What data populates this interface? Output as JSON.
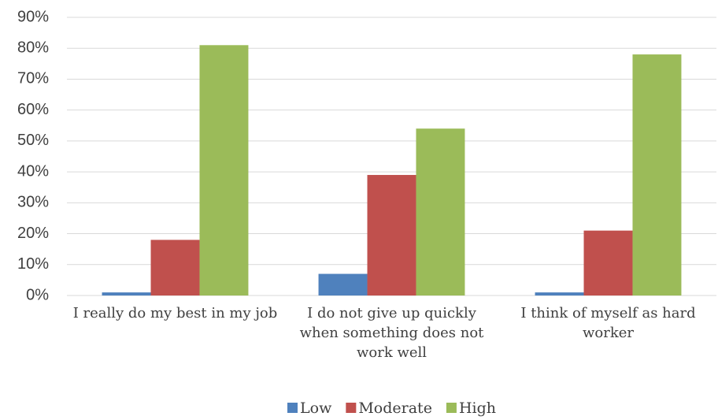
{
  "chart_data": {
    "type": "bar",
    "categories": [
      "I really do my best in my job",
      "I do not give up quickly when something does not work well",
      "I think of myself as hard worker"
    ],
    "series": [
      {
        "name": "Low",
        "color": "#4f81bd",
        "values": [
          1,
          7,
          1
        ]
      },
      {
        "name": "Moderate",
        "color": "#c0504d",
        "values": [
          18,
          39,
          21
        ]
      },
      {
        "name": "High",
        "color": "#9bbb59",
        "values": [
          81,
          54,
          78
        ]
      }
    ],
    "ylim": [
      0,
      90
    ],
    "yticks": [
      {
        "value": 0,
        "label": "0%"
      },
      {
        "value": 10,
        "label": "10%"
      },
      {
        "value": 20,
        "label": "20%"
      },
      {
        "value": 30,
        "label": "30%"
      },
      {
        "value": 40,
        "label": "40%"
      },
      {
        "value": 50,
        "label": "50%"
      },
      {
        "value": 60,
        "label": "60%"
      },
      {
        "value": 70,
        "label": "70%"
      },
      {
        "value": 80,
        "label": "80%"
      },
      {
        "value": 90,
        "label": "90%"
      }
    ],
    "grid": true,
    "legend": "bottom"
  }
}
